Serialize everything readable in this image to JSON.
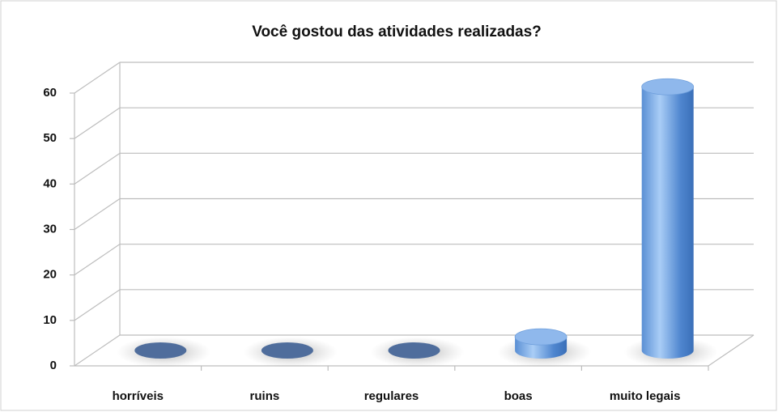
{
  "chart_data": {
    "type": "bar3d",
    "title": "Você gostou das atividades realizadas?",
    "categories": [
      "horríveis",
      "ruins",
      "regulares",
      "boas",
      "muito legais"
    ],
    "values": [
      0,
      0,
      0,
      3,
      58
    ],
    "color": "#5b8fd6",
    "ylim": [
      0,
      60
    ],
    "yticks": [
      0,
      10,
      20,
      30,
      40,
      50,
      60
    ],
    "grid": true
  }
}
